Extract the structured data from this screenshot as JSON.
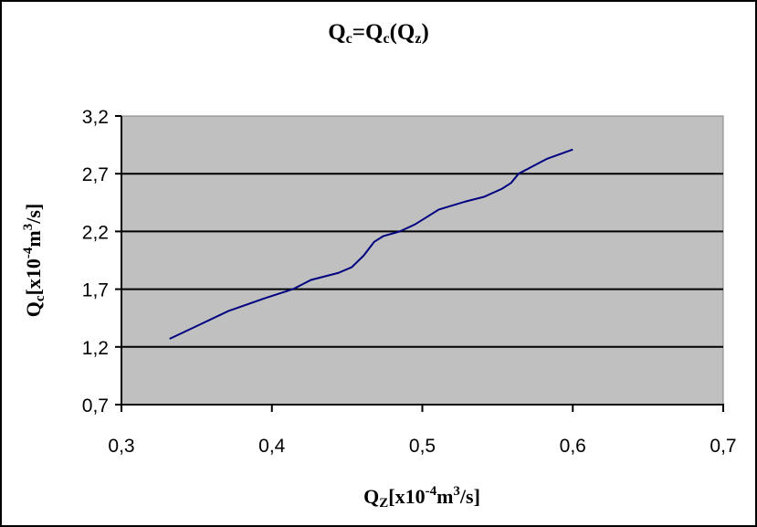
{
  "chart_data": {
    "type": "line",
    "title": "Qc=Qc(Qz)",
    "title_parts": {
      "q1": "Q",
      "s1": "c",
      "eq": "=Q",
      "s2": "c",
      "open": "(Q",
      "s3": "z",
      "close": ")"
    },
    "xlabel": "QZ[x10-4m3/s]",
    "xlabel_parts": {
      "q": "Q",
      "sub": "Z",
      "pre": "[x10",
      "exp": "-4",
      "mid": "m",
      "exp2": "3",
      "post": "/s]"
    },
    "ylabel": "Qc[x10-4m3/s]",
    "ylabel_parts": {
      "q": "Q",
      "sub": "c",
      "pre": "[x10",
      "exp": "-4",
      "mid": "m",
      "exp2": "3",
      "post": "/s]"
    },
    "xlim": [
      0.3,
      0.7
    ],
    "ylim": [
      0.7,
      3.2
    ],
    "xticks": [
      "0,3",
      "0,4",
      "0,5",
      "0,6",
      "0,7"
    ],
    "yticks": [
      "3,2",
      "2,7",
      "2,2",
      "1,7",
      "1,2",
      "0,7"
    ],
    "grid": "horizontal",
    "plot_background": "#c0c0c0",
    "line_color": "#000080",
    "series": [
      {
        "name": "Qc",
        "x": [
          0.332,
          0.35,
          0.371,
          0.395,
          0.414,
          0.426,
          0.444,
          0.453,
          0.461,
          0.468,
          0.474,
          0.485,
          0.495,
          0.511,
          0.529,
          0.541,
          0.553,
          0.559,
          0.564,
          0.583,
          0.6
        ],
        "y": [
          1.27,
          1.38,
          1.51,
          1.62,
          1.7,
          1.78,
          1.84,
          1.89,
          1.99,
          2.11,
          2.16,
          2.2,
          2.26,
          2.39,
          2.46,
          2.5,
          2.57,
          2.62,
          2.7,
          2.83,
          2.91
        ]
      }
    ]
  }
}
